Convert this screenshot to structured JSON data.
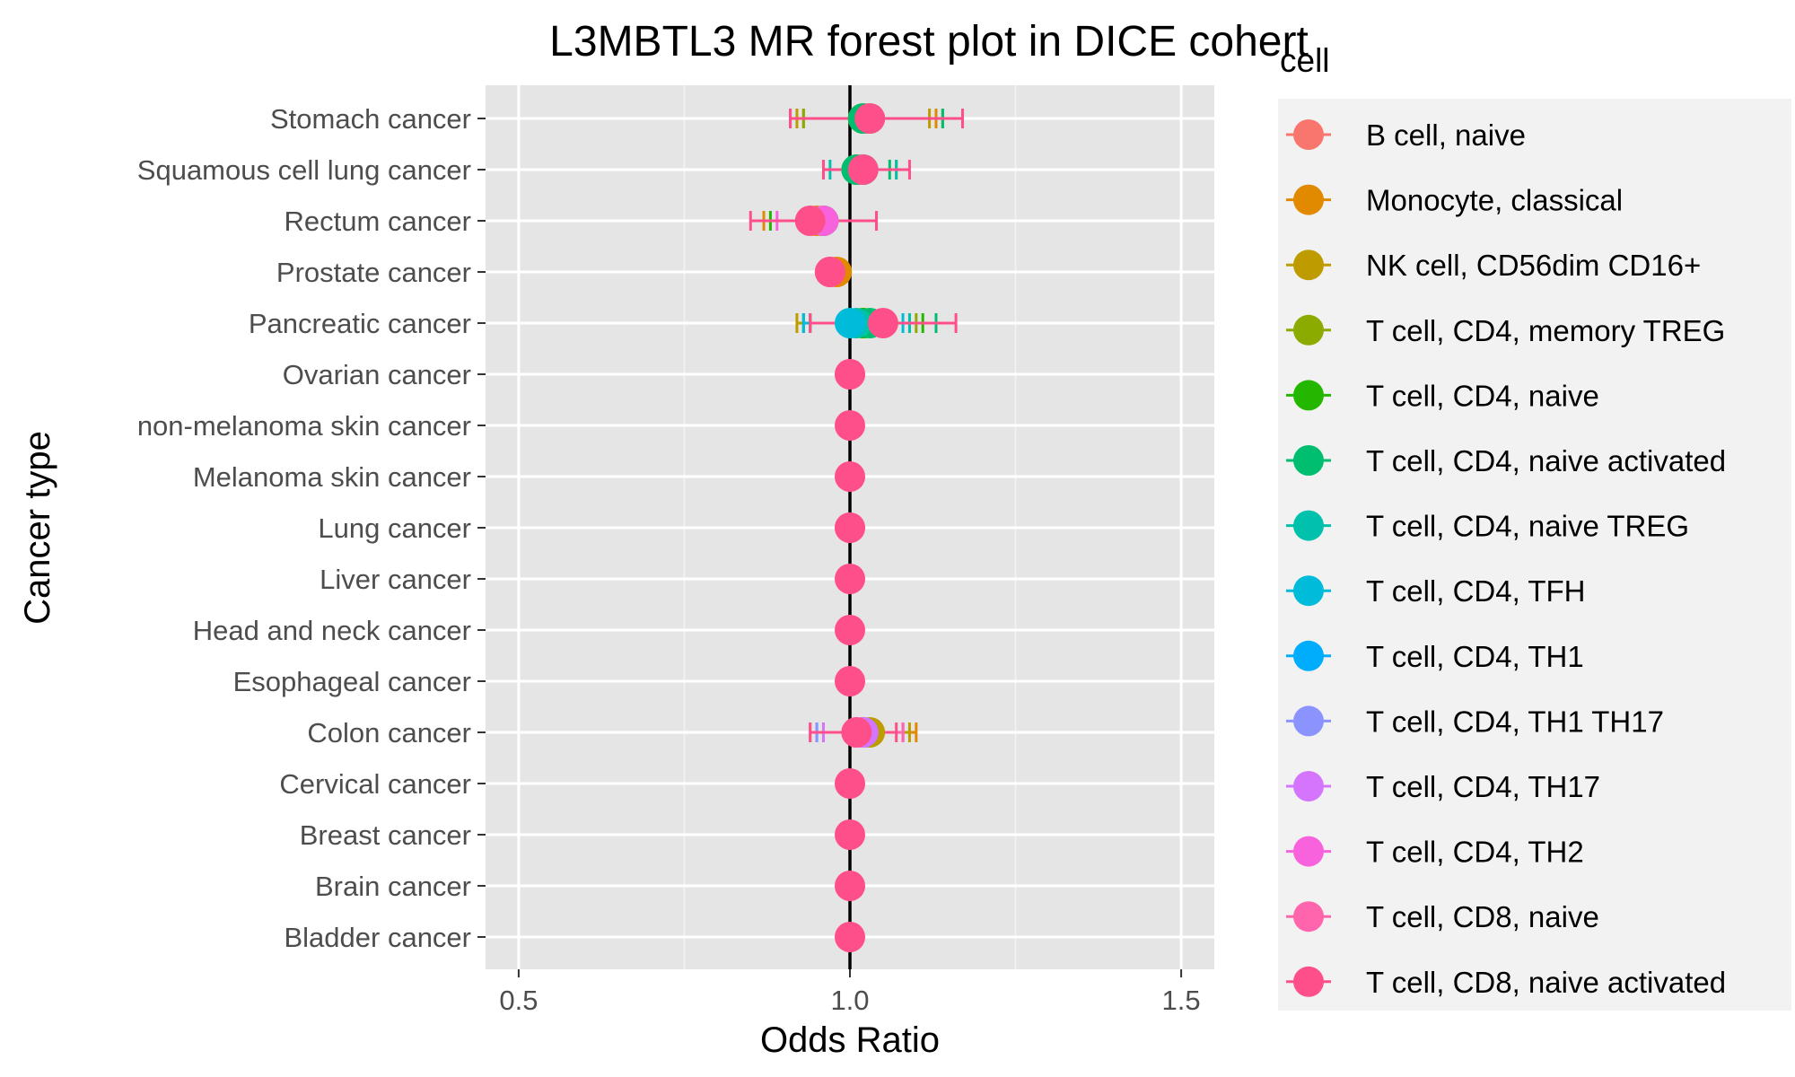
{
  "chart_data": {
    "type": "scatter",
    "subtype": "forest-plot",
    "title": "L3MBTL3 MR forest plot in DICE cohert",
    "xlabel": "Odds Ratio",
    "ylabel": "Cancer type",
    "xlim": [
      0.45,
      1.55
    ],
    "x_ticks": [
      "0.5",
      "1.0",
      "1.5"
    ],
    "x_tick_values": [
      0.5,
      1.0,
      1.5
    ],
    "reference_line": 1.0,
    "grid": true,
    "panel_background": "#e5e5e5",
    "legend": {
      "title": "cell",
      "position": "right"
    },
    "categories": [
      "Stomach cancer",
      "Squamous cell lung cancer",
      "Rectum cancer",
      "Prostate cancer",
      "Pancreatic cancer",
      "Ovarian cancer",
      "non-melanoma skin cancer",
      "Melanoma skin cancer",
      "Lung cancer",
      "Liver cancer",
      "Head and neck cancer",
      "Esophageal cancer",
      "Colon cancer",
      "Cervical cancer",
      "Breast cancer",
      "Brain cancer",
      "Bladder cancer"
    ],
    "series": [
      {
        "name": "B cell, naive",
        "color": "#F8766D",
        "points": [
          {
            "cancer": "Prostate cancer",
            "or": 0.97,
            "lo": 0.96,
            "hi": 0.98
          },
          {
            "cancer": "Ovarian cancer",
            "or": 1.0,
            "lo": 1.0,
            "hi": 1.0
          },
          {
            "cancer": "Lung cancer",
            "or": 1.0,
            "lo": 1.0,
            "hi": 1.0
          }
        ]
      },
      {
        "name": "Monocyte, classical",
        "color": "#E18A00",
        "points": [
          {
            "cancer": "Stomach cancer",
            "or": 1.02,
            "lo": 0.93,
            "hi": 1.13
          },
          {
            "cancer": "Rectum cancer",
            "or": 0.95,
            "lo": 0.87,
            "hi": 1.04
          },
          {
            "cancer": "Prostate cancer",
            "or": 0.98,
            "lo": 0.97,
            "hi": 0.99
          },
          {
            "cancer": "Colon cancer",
            "or": 1.02,
            "lo": 0.96,
            "hi": 1.1
          }
        ]
      },
      {
        "name": "NK cell, CD56dim CD16+",
        "color": "#BE9C00",
        "points": [
          {
            "cancer": "Stomach cancer",
            "or": 1.02,
            "lo": 0.92,
            "hi": 1.12
          },
          {
            "cancer": "Squamous cell lung cancer",
            "or": 1.01,
            "lo": 0.96,
            "hi": 1.07
          },
          {
            "cancer": "Pancreatic cancer",
            "or": 1.02,
            "lo": 0.92,
            "hi": 1.09
          },
          {
            "cancer": "Colon cancer",
            "or": 1.03,
            "lo": 0.96,
            "hi": 1.09
          }
        ]
      },
      {
        "name": "T cell, CD4, memory TREG",
        "color": "#8CAB00",
        "points": [
          {
            "cancer": "Stomach cancer",
            "or": 1.03,
            "lo": 0.93,
            "hi": 1.14
          },
          {
            "cancer": "Pancreatic cancer",
            "or": 1.02,
            "lo": 0.93,
            "hi": 1.1
          }
        ]
      },
      {
        "name": "T cell, CD4, naive",
        "color": "#24B700",
        "points": [
          {
            "cancer": "Rectum cancer",
            "or": 0.96,
            "lo": 0.88,
            "hi": 1.04
          },
          {
            "cancer": "Pancreatic cancer",
            "or": 1.02,
            "lo": 0.94,
            "hi": 1.11
          }
        ]
      },
      {
        "name": "T cell, CD4, naive activated",
        "color": "#00BE70",
        "points": [
          {
            "cancer": "Stomach cancer",
            "or": 1.02,
            "lo": 0.91,
            "hi": 1.14
          },
          {
            "cancer": "Squamous cell lung cancer",
            "or": 1.01,
            "lo": 0.96,
            "hi": 1.06
          },
          {
            "cancer": "Pancreatic cancer",
            "or": 1.03,
            "lo": 0.94,
            "hi": 1.13
          }
        ]
      },
      {
        "name": "T cell, CD4, naive TREG",
        "color": "#00C1AB",
        "points": [
          {
            "cancer": "Squamous cell lung cancer",
            "or": 1.02,
            "lo": 0.97,
            "hi": 1.07
          },
          {
            "cancer": "Pancreatic cancer",
            "or": 1.01,
            "lo": 0.93,
            "hi": 1.09
          }
        ]
      },
      {
        "name": "T cell, CD4, TFH",
        "color": "#00BBDA",
        "points": [
          {
            "cancer": "Pancreatic cancer",
            "or": 1.0,
            "lo": 0.93,
            "hi": 1.08
          }
        ]
      },
      {
        "name": "T cell, CD4, TH1",
        "color": "#00ACFC",
        "points": [
          {
            "cancer": "Colon cancer",
            "or": 1.02,
            "lo": 0.95,
            "hi": 1.08
          }
        ]
      },
      {
        "name": "T cell, CD4, TH1 TH17",
        "color": "#8B93FF",
        "points": [
          {
            "cancer": "Colon cancer",
            "or": 1.02,
            "lo": 0.95,
            "hi": 1.08
          }
        ]
      },
      {
        "name": "T cell, CD4, TH17",
        "color": "#D575FE",
        "points": [
          {
            "cancer": "Colon cancer",
            "or": 1.02,
            "lo": 0.96,
            "hi": 1.08
          }
        ]
      },
      {
        "name": "T cell, CD4, TH2",
        "color": "#F962DD",
        "points": [
          {
            "cancer": "Rectum cancer",
            "or": 0.96,
            "lo": 0.89,
            "hi": 1.04
          }
        ]
      },
      {
        "name": "T cell, CD8, naive",
        "color": "#FF65AC",
        "points": [
          {
            "cancer": "Colon cancer",
            "or": 1.01,
            "lo": 0.94,
            "hi": 1.08
          }
        ]
      },
      {
        "name": "T cell, CD8, naive activated",
        "color": "#FF4F8B",
        "points": [
          {
            "cancer": "Stomach cancer",
            "or": 1.03,
            "lo": 0.91,
            "hi": 1.17
          },
          {
            "cancer": "Squamous cell lung cancer",
            "or": 1.02,
            "lo": 0.96,
            "hi": 1.09
          },
          {
            "cancer": "Rectum cancer",
            "or": 0.94,
            "lo": 0.85,
            "hi": 1.04
          },
          {
            "cancer": "Prostate cancer",
            "or": 0.97,
            "lo": 0.96,
            "hi": 0.98
          },
          {
            "cancer": "Pancreatic cancer",
            "or": 1.05,
            "lo": 0.94,
            "hi": 1.16
          },
          {
            "cancer": "Ovarian cancer",
            "or": 1.0,
            "lo": 1.0,
            "hi": 1.0
          },
          {
            "cancer": "non-melanoma skin cancer",
            "or": 1.0,
            "lo": 1.0,
            "hi": 1.0
          },
          {
            "cancer": "Melanoma skin cancer",
            "or": 1.0,
            "lo": 1.0,
            "hi": 1.0
          },
          {
            "cancer": "Lung cancer",
            "or": 1.0,
            "lo": 1.0,
            "hi": 1.0
          },
          {
            "cancer": "Liver cancer",
            "or": 1.0,
            "lo": 1.0,
            "hi": 1.0
          },
          {
            "cancer": "Head and neck cancer",
            "or": 1.0,
            "lo": 1.0,
            "hi": 1.0
          },
          {
            "cancer": "Esophageal cancer",
            "or": 1.0,
            "lo": 1.0,
            "hi": 1.0
          },
          {
            "cancer": "Colon cancer",
            "or": 1.01,
            "lo": 0.94,
            "hi": 1.07
          },
          {
            "cancer": "Cervical cancer",
            "or": 1.0,
            "lo": 1.0,
            "hi": 1.0
          },
          {
            "cancer": "Breast cancer",
            "or": 1.0,
            "lo": 1.0,
            "hi": 1.0
          },
          {
            "cancer": "Brain cancer",
            "or": 1.0,
            "lo": 1.0,
            "hi": 1.0
          },
          {
            "cancer": "Bladder cancer",
            "or": 1.0,
            "lo": 1.0,
            "hi": 1.0
          }
        ]
      }
    ]
  }
}
